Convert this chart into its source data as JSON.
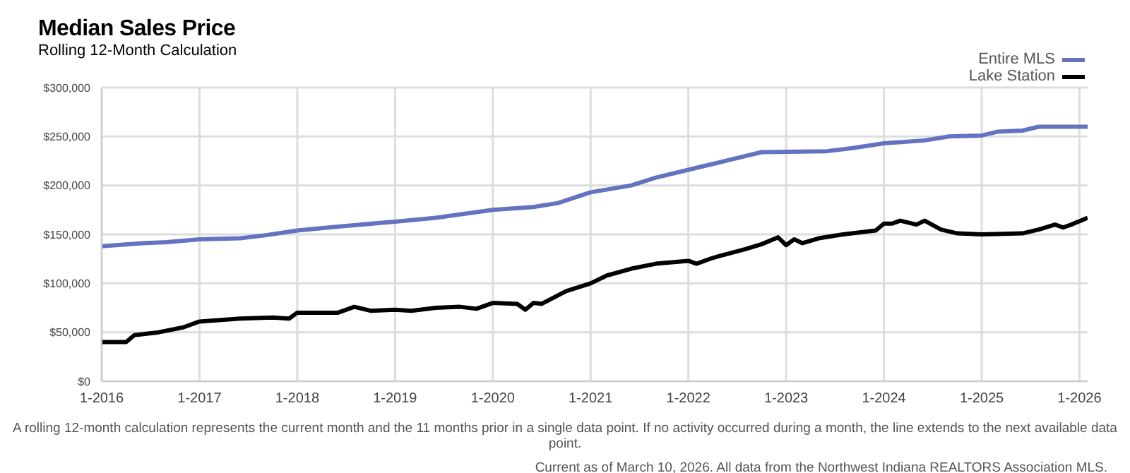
{
  "chart_data": {
    "type": "line",
    "title": "Median Sales Price",
    "subtitle": "Rolling 12-Month Calculation",
    "xlim": [
      "2016-01",
      "2026-02"
    ],
    "xticks": [
      {
        "value": "2016-01",
        "label": "1-2016"
      },
      {
        "value": "2017-01",
        "label": "1-2017"
      },
      {
        "value": "2018-01",
        "label": "1-2018"
      },
      {
        "value": "2019-01",
        "label": "1-2019"
      },
      {
        "value": "2020-01",
        "label": "1-2020"
      },
      {
        "value": "2021-01",
        "label": "1-2021"
      },
      {
        "value": "2022-01",
        "label": "1-2022"
      },
      {
        "value": "2023-01",
        "label": "1-2023"
      },
      {
        "value": "2024-01",
        "label": "1-2024"
      },
      {
        "value": "2025-01",
        "label": "1-2025"
      },
      {
        "value": "2026-01",
        "label": "1-2026"
      }
    ],
    "ylim": [
      0,
      300000
    ],
    "yticks": [
      {
        "value": 0,
        "label": "$0"
      },
      {
        "value": 50000,
        "label": "$50,000"
      },
      {
        "value": 100000,
        "label": "$100,000"
      },
      {
        "value": 150000,
        "label": "$150,000"
      },
      {
        "value": 200000,
        "label": "$200,000"
      },
      {
        "value": 250000,
        "label": "$250,000"
      },
      {
        "value": 300000,
        "label": "$300,000"
      }
    ],
    "grid": true,
    "legend": "top right",
    "marker": "none",
    "line_style": "solid",
    "series": [
      {
        "name": "Entire MLS",
        "color": "#6473c0",
        "x": [
          "2016-01",
          "2016-06",
          "2016-09",
          "2017-01",
          "2017-06",
          "2017-09",
          "2018-01",
          "2018-06",
          "2019-01",
          "2019-06",
          "2020-01",
          "2020-06",
          "2020-09",
          "2021-01",
          "2021-06",
          "2021-09",
          "2022-01",
          "2022-06",
          "2022-10",
          "2023-06",
          "2023-09",
          "2024-01",
          "2024-06",
          "2024-09",
          "2025-01",
          "2025-03",
          "2025-06",
          "2025-08",
          "2026-02"
        ],
        "values": [
          138000,
          141000,
          142000,
          145000,
          146000,
          149000,
          154000,
          158000,
          163000,
          167000,
          175000,
          178000,
          182000,
          193000,
          200000,
          208000,
          216000,
          226000,
          234000,
          235000,
          238000,
          243000,
          246000,
          250000,
          251000,
          255000,
          256000,
          260000,
          260000
        ]
      },
      {
        "name": "Lake Station",
        "color": "#000000",
        "x": [
          "2016-01",
          "2016-04",
          "2016-05",
          "2016-08",
          "2016-11",
          "2017-01",
          "2017-06",
          "2017-10",
          "2017-12",
          "2018-01",
          "2018-06",
          "2018-08",
          "2018-10",
          "2019-01",
          "2019-03",
          "2019-06",
          "2019-09",
          "2019-11",
          "2020-01",
          "2020-04",
          "2020-05",
          "2020-06",
          "2020-07",
          "2020-10",
          "2021-01",
          "2021-03",
          "2021-06",
          "2021-09",
          "2022-01",
          "2022-02",
          "2022-04",
          "2022-08",
          "2022-10",
          "2022-12",
          "2023-01",
          "2023-02",
          "2023-03",
          "2023-05",
          "2023-08",
          "2023-12",
          "2024-01",
          "2024-02",
          "2024-03",
          "2024-05",
          "2024-06",
          "2024-08",
          "2024-10",
          "2025-01",
          "2025-06",
          "2025-08",
          "2025-10",
          "2025-11",
          "2025-12",
          "2026-02"
        ],
        "values": [
          40000,
          40000,
          47000,
          50000,
          55000,
          61000,
          64000,
          65000,
          64000,
          70000,
          70000,
          76000,
          72000,
          73000,
          72000,
          75000,
          76000,
          74000,
          80000,
          79000,
          73000,
          80000,
          79000,
          92000,
          100000,
          108000,
          115000,
          120000,
          123000,
          120000,
          126000,
          135000,
          140000,
          147000,
          139000,
          145000,
          141000,
          146000,
          150000,
          154000,
          161000,
          161000,
          164000,
          160000,
          164000,
          155000,
          151000,
          150000,
          151000,
          155000,
          160000,
          157000,
          160000,
          167000
        ]
      }
    ],
    "annotations": [
      "A rolling 12-month calculation represents the current month and the 11 months prior in a single data point. If no activity occurred during a month, the line extends to the next available data point.",
      "Current as of March 10, 2026. All data from the Northwest Indiana REALTORS Association MLS."
    ]
  }
}
